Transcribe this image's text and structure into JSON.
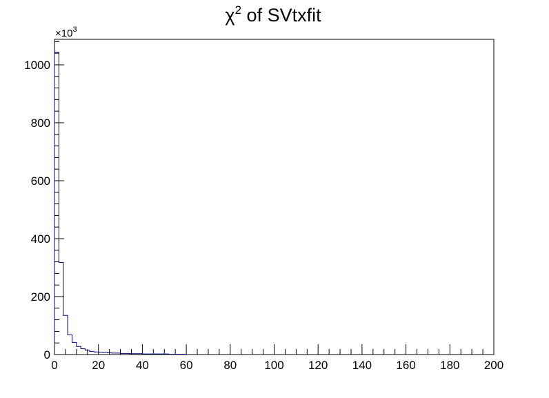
{
  "chart_data": {
    "type": "bar",
    "title": "χ² of SVtxfit",
    "title_base": "χ",
    "title_sup": "2",
    "title_rest": " of SVtxfit",
    "xlabel": "",
    "ylabel": "",
    "y_multiplier_base": "×10",
    "y_multiplier_exp": "3",
    "xlim": [
      0,
      200
    ],
    "ylim": [
      0,
      1088
    ],
    "x_ticks": [
      0,
      20,
      40,
      60,
      80,
      100,
      120,
      140,
      160,
      180,
      200
    ],
    "y_ticks": [
      0,
      200,
      400,
      600,
      800,
      1000
    ],
    "bin_width": 2,
    "x_bin_starts": [
      0,
      2,
      4,
      6,
      8,
      10,
      12,
      14,
      16,
      18,
      20,
      22,
      24,
      26,
      28,
      30,
      32,
      34,
      36,
      38,
      40,
      42,
      44,
      46,
      48,
      50,
      52,
      54,
      56,
      58
    ],
    "values": [
      1043,
      318,
      135,
      68,
      42,
      28,
      20,
      15,
      11,
      9,
      8,
      7,
      6,
      5,
      5,
      4,
      4,
      3,
      3,
      3,
      2,
      2,
      2,
      2,
      2,
      2,
      1,
      1,
      1,
      1
    ],
    "grid": false,
    "legend": "none",
    "line_color": "#000080"
  }
}
